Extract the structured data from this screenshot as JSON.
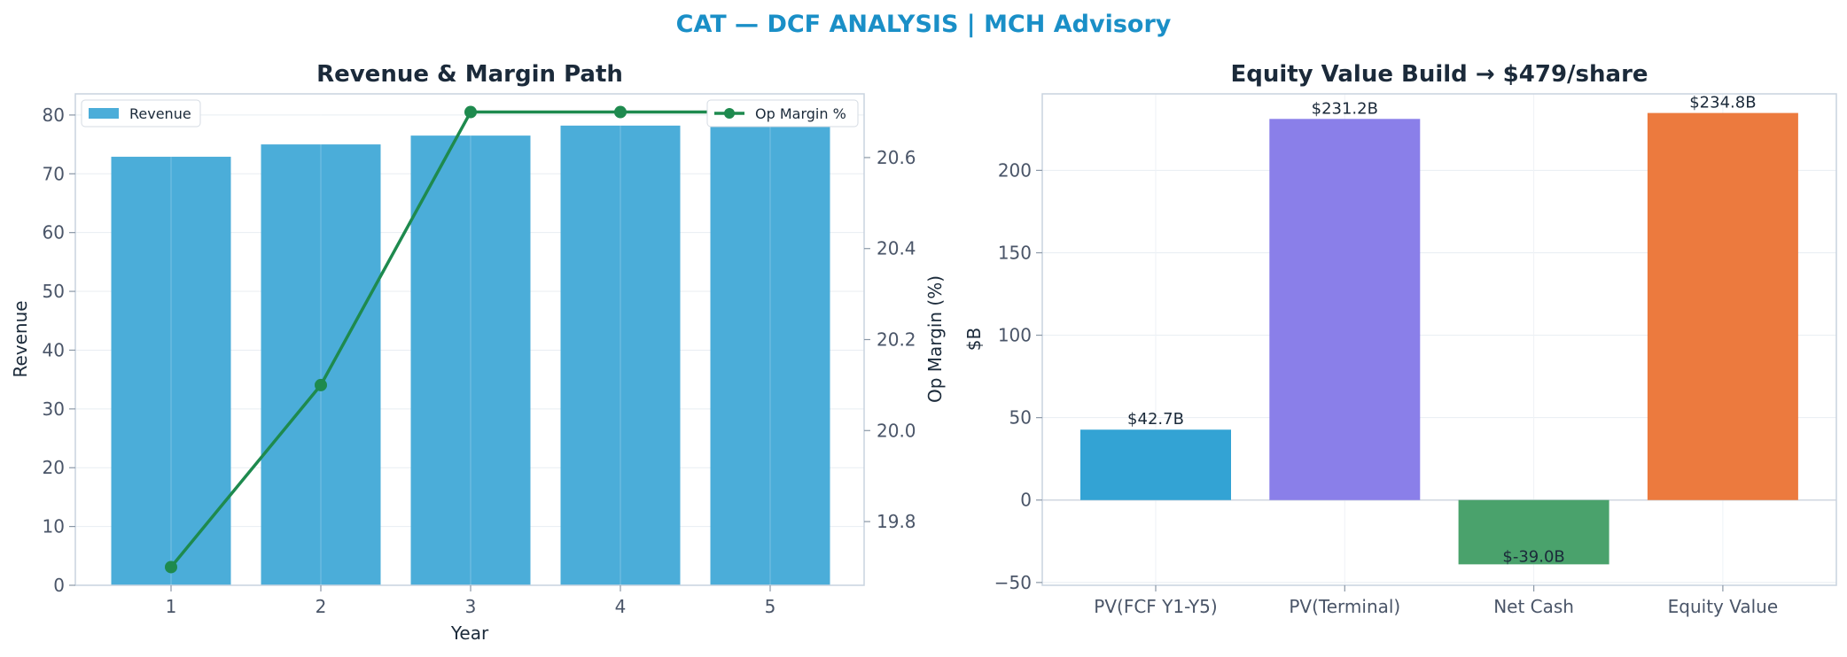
{
  "page": {
    "suptitle": "CAT — DCF ANALYSIS | MCH Advisory",
    "suptitle_color": "#1a8fc7"
  },
  "chart_data": [
    {
      "type": "bar",
      "title": "Revenue & Margin Path",
      "xlabel": "Year",
      "ylabel": "Revenue",
      "y2label": "Op Margin (%)",
      "categories": [
        "1",
        "2",
        "3",
        "4",
        "5"
      ],
      "ylim": [
        0,
        83.6
      ],
      "y2lim": [
        19.66,
        20.74
      ],
      "yticks": [
        "0",
        "10",
        "20",
        "30",
        "40",
        "50",
        "60",
        "70",
        "80"
      ],
      "y2ticks": [
        "19.8",
        "20.0",
        "20.2",
        "20.4",
        "20.6"
      ],
      "grid": true,
      "series": [
        {
          "name": "Revenue",
          "type": "bar",
          "color": "#4badd9",
          "values": [
            72.9,
            75.0,
            76.5,
            78.2,
            79.9
          ]
        },
        {
          "name": "Op Margin %",
          "type": "line",
          "axis": "right",
          "color": "#1e8a4e",
          "values": [
            19.7,
            20.1,
            20.7,
            20.7,
            20.7
          ]
        }
      ],
      "legend": {
        "left_entry": "Revenue",
        "right_entry": "Op Margin %",
        "placement": "top-left / top-right"
      }
    },
    {
      "type": "bar",
      "title": "Equity Value Build → $479/share",
      "xlabel": "",
      "ylabel": "$B",
      "categories": [
        "PV(FCF Y1-Y5)",
        "PV(Terminal)",
        "Net Cash",
        "Equity Value"
      ],
      "values": [
        42.7,
        231.2,
        -39.0,
        234.8
      ],
      "data_labels": [
        "$42.7B",
        "$231.2B",
        "$-39.0B",
        "$234.8B"
      ],
      "colors": [
        "#33a3d4",
        "#8a7fe9",
        "#4aa26c",
        "#ec7a3e"
      ],
      "ylim": [
        -51.7,
        246.4
      ],
      "yticks": [
        "−50",
        "0",
        "50",
        "100",
        "150",
        "200"
      ],
      "grid": true
    }
  ]
}
